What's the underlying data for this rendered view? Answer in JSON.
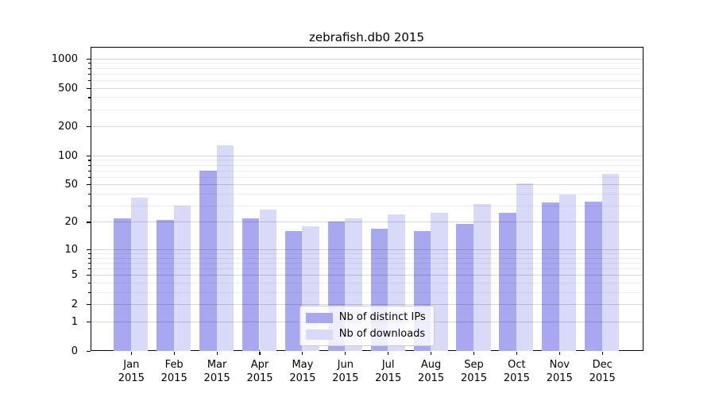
{
  "chart_data": {
    "type": "bar",
    "title": "zebrafish.db0 2015",
    "categories": [
      "Jan",
      "Feb",
      "Mar",
      "Apr",
      "May",
      "Jun",
      "Jul",
      "Aug",
      "Sep",
      "Oct",
      "Nov",
      "Dec"
    ],
    "category_year": "2015",
    "series": [
      {
        "name": "Nb of distinct IPs",
        "color": "#a8a8f0",
        "values": [
          22,
          21,
          70,
          22,
          16,
          20,
          17,
          16,
          19,
          25,
          32,
          33
        ]
      },
      {
        "name": "Nb of downloads",
        "color": "#d9d9f8",
        "values": [
          36,
          30,
          127,
          27,
          18,
          22,
          24,
          25,
          31,
          51,
          39,
          64
        ]
      }
    ],
    "y_scale": "log10(1+x)",
    "y_tick_labels": [
      "0",
      "1",
      "2",
      "5",
      "10",
      "20",
      "50",
      "100",
      "200",
      "500",
      "1000"
    ],
    "y_major_ticks": [
      0,
      1,
      2,
      5,
      10,
      20,
      50,
      100,
      200,
      500,
      1000
    ],
    "y_minor_ticks": [
      3,
      4,
      6,
      7,
      8,
      9,
      30,
      40,
      60,
      70,
      80,
      90,
      300,
      400,
      600,
      700,
      800,
      900
    ],
    "ylim": [
      0,
      1330
    ],
    "grid": true,
    "legend_position": "lower center"
  }
}
